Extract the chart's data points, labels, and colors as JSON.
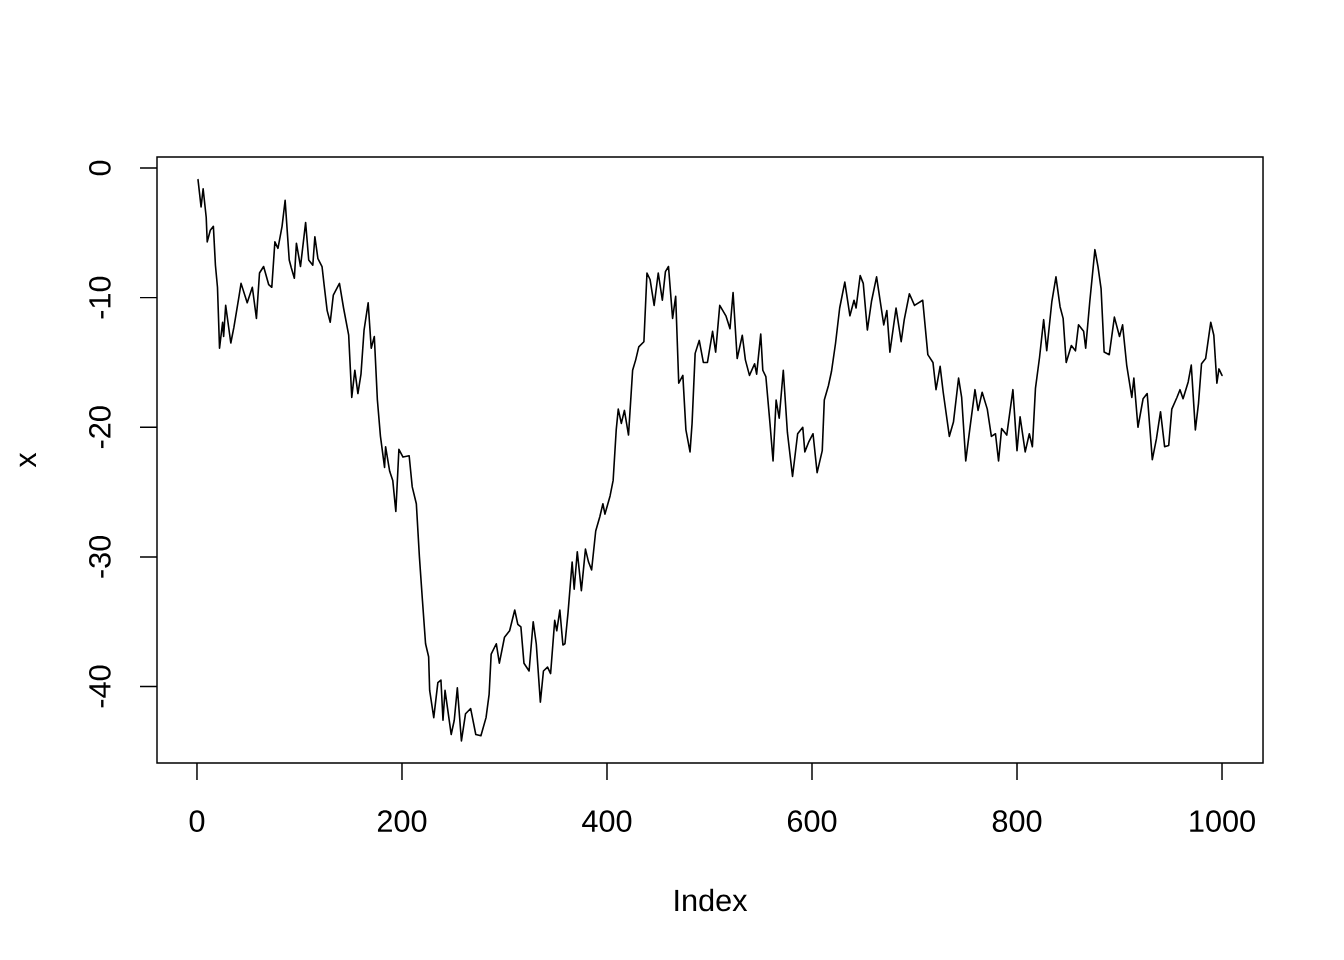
{
  "chart_data": {
    "type": "line",
    "xlabel": "Index",
    "ylabel": "x",
    "color": "#000000",
    "line_style": "solid",
    "xlim": [
      -39,
      1040
    ],
    "ylim": [
      -45.9,
      0.85
    ],
    "xticks": [
      0,
      200,
      400,
      600,
      800,
      1000
    ],
    "yticks": [
      -40,
      -30,
      -20,
      -10,
      0
    ],
    "x": [
      1,
      4,
      6,
      9,
      10,
      13,
      16,
      18,
      20,
      22,
      25,
      26,
      28,
      33,
      36,
      41,
      43,
      49,
      54,
      58,
      61,
      65,
      70,
      73,
      76,
      79,
      83,
      86,
      90,
      92,
      95,
      97,
      101,
      106,
      109,
      113,
      115,
      118,
      122,
      124,
      127,
      130,
      133,
      139,
      143,
      148,
      151,
      154,
      157,
      160,
      163,
      167,
      170,
      173,
      176,
      179,
      183,
      184,
      188,
      191,
      194,
      197,
      201,
      207,
      210,
      214,
      217,
      220,
      223,
      226,
      227,
      231,
      235,
      238,
      240,
      242,
      248,
      251,
      254,
      258,
      262,
      267,
      272,
      277,
      282,
      285,
      287,
      292,
      295,
      300,
      305,
      310,
      313,
      316,
      319,
      324,
      328,
      331,
      335,
      338,
      342,
      345,
      349,
      351,
      354,
      357,
      359,
      362,
      366,
      368,
      371,
      375,
      379,
      382,
      385,
      389,
      393,
      396,
      398,
      403,
      406,
      409,
      411,
      414,
      417,
      421,
      425,
      428,
      431,
      436,
      439,
      442,
      446,
      450,
      454,
      457,
      460,
      464,
      467,
      470,
      474,
      477,
      481,
      483,
      486,
      490,
      494,
      498,
      503,
      506,
      510,
      516,
      520,
      523,
      527,
      532,
      535,
      539,
      544,
      546,
      550,
      552,
      555,
      559,
      562,
      565,
      568,
      572,
      576,
      581,
      586,
      591,
      593,
      597,
      601,
      605,
      610,
      612,
      616,
      619,
      623,
      627,
      632,
      637,
      641,
      643,
      647,
      650,
      654,
      658,
      663,
      670,
      673,
      676,
      682,
      687,
      690,
      695,
      700,
      708,
      713,
      718,
      721,
      725,
      728,
      734,
      738,
      743,
      746,
      750,
      754,
      759,
      762,
      766,
      771,
      775,
      779,
      782,
      785,
      790,
      796,
      800,
      803,
      808,
      812,
      815,
      818,
      822,
      826,
      829,
      834,
      838,
      842,
      845,
      848,
      853,
      857,
      860,
      865,
      867,
      871,
      876,
      879,
      882,
      885,
      890,
      895,
      900,
      903,
      907,
      912,
      914,
      918,
      923,
      927,
      932,
      936,
      940,
      944,
      948,
      951,
      956,
      959,
      962,
      967,
      970,
      974,
      977,
      980,
      984,
      989,
      992,
      995,
      997,
      1000
    ],
    "values": [
      -0.9,
      -3.0,
      -1.6,
      -3.8,
      -5.7,
      -4.8,
      -4.5,
      -7.5,
      -9.2,
      -13.9,
      -11.9,
      -13.0,
      -10.6,
      -13.5,
      -12.3,
      -9.9,
      -8.9,
      -10.4,
      -9.2,
      -11.6,
      -8.1,
      -7.6,
      -9.0,
      -9.2,
      -5.7,
      -6.2,
      -4.5,
      -2.5,
      -7.1,
      -7.7,
      -8.5,
      -5.8,
      -7.6,
      -4.2,
      -7.1,
      -7.5,
      -5.3,
      -7.0,
      -7.6,
      -9.0,
      -11.0,
      -11.9,
      -9.8,
      -8.9,
      -10.8,
      -12.9,
      -17.7,
      -15.6,
      -17.4,
      -15.9,
      -12.5,
      -10.4,
      -13.9,
      -13.0,
      -17.9,
      -20.7,
      -23.1,
      -21.5,
      -23.4,
      -24.1,
      -26.5,
      -21.7,
      -22.3,
      -22.2,
      -24.6,
      -25.9,
      -30.0,
      -33.4,
      -36.7,
      -37.7,
      -40.3,
      -42.4,
      -39.7,
      -39.5,
      -42.6,
      -40.3,
      -43.7,
      -42.6,
      -40.1,
      -44.2,
      -42.1,
      -41.7,
      -43.7,
      -43.8,
      -42.4,
      -40.6,
      -37.5,
      -36.7,
      -38.2,
      -36.2,
      -35.7,
      -34.1,
      -35.2,
      -35.4,
      -38.2,
      -38.8,
      -35.0,
      -36.7,
      -41.2,
      -38.8,
      -38.5,
      -39.0,
      -34.9,
      -35.7,
      -34.1,
      -36.8,
      -36.7,
      -34.3,
      -30.4,
      -32.5,
      -29.6,
      -32.6,
      -29.4,
      -30.4,
      -31.0,
      -28.0,
      -26.9,
      -25.9,
      -26.7,
      -25.3,
      -24.1,
      -20.2,
      -18.6,
      -19.7,
      -18.7,
      -20.6,
      -15.6,
      -14.8,
      -13.8,
      -13.4,
      -8.1,
      -8.6,
      -10.6,
      -8.1,
      -10.2,
      -8.0,
      -7.6,
      -11.6,
      -9.9,
      -16.6,
      -16.0,
      -20.2,
      -21.9,
      -19.7,
      -14.3,
      -13.3,
      -15.0,
      -15.0,
      -12.6,
      -14.2,
      -10.6,
      -11.4,
      -12.4,
      -9.6,
      -14.7,
      -12.9,
      -14.8,
      -16.0,
      -15.1,
      -15.9,
      -12.8,
      -15.6,
      -16.1,
      -19.7,
      -22.6,
      -17.9,
      -19.3,
      -15.6,
      -20.4,
      -23.8,
      -20.5,
      -20.0,
      -21.9,
      -21.1,
      -20.5,
      -23.5,
      -21.8,
      -17.9,
      -16.8,
      -15.7,
      -13.5,
      -10.8,
      -8.8,
      -11.4,
      -10.2,
      -10.8,
      -8.3,
      -8.9,
      -12.5,
      -10.3,
      -8.4,
      -12.1,
      -11.0,
      -14.2,
      -10.8,
      -13.4,
      -11.7,
      -9.7,
      -10.6,
      -10.2,
      -14.4,
      -15.0,
      -17.1,
      -15.3,
      -17.3,
      -20.7,
      -19.6,
      -16.2,
      -17.7,
      -22.6,
      -20.1,
      -17.1,
      -18.7,
      -17.3,
      -18.6,
      -20.7,
      -20.5,
      -22.6,
      -20.1,
      -20.6,
      -17.1,
      -21.8,
      -19.2,
      -21.9,
      -20.5,
      -21.5,
      -17.0,
      -14.6,
      -11.7,
      -14.1,
      -10.3,
      -8.4,
      -10.7,
      -11.6,
      -15.0,
      -13.7,
      -14.1,
      -12.1,
      -12.6,
      -13.9,
      -10.3,
      -6.3,
      -7.6,
      -9.3,
      -14.2,
      -14.4,
      -11.5,
      -13.0,
      -12.1,
      -15.2,
      -17.7,
      -16.2,
      -20.0,
      -17.8,
      -17.4,
      -22.5,
      -20.9,
      -18.8,
      -21.5,
      -21.4,
      -18.6,
      -17.7,
      -17.1,
      -17.8,
      -16.5,
      -15.2,
      -20.2,
      -18.2,
      -15.1,
      -14.7,
      -11.9,
      -12.9,
      -16.6,
      -15.5,
      -16.0
    ]
  }
}
